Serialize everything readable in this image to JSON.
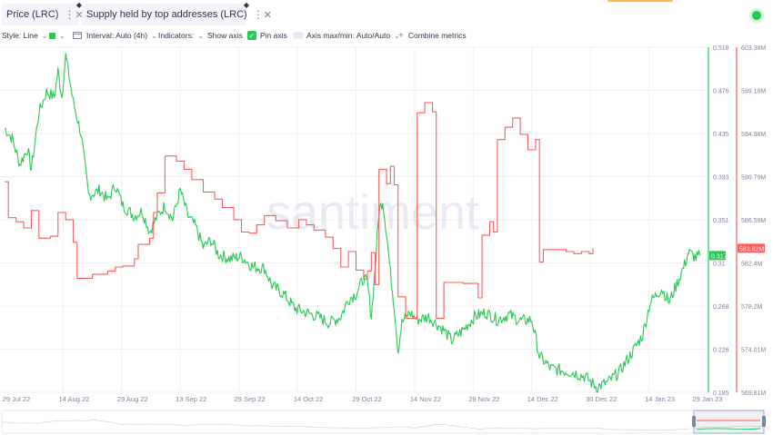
{
  "tabs": [
    {
      "label": "Price (LRC)",
      "color": "#26c953"
    },
    {
      "label": "Supply held by top addresses (LRC)",
      "color": "#ff5b5b"
    }
  ],
  "toolbar": {
    "style_label": "Style: Line",
    "interval_label": "Interval: Auto (4h)",
    "indicators_label": "Indicators:",
    "show_axis_label": "Show axis",
    "pin_axis_label": "Pin axis",
    "axis_maxmin_label": "Axis max/min: Auto/Auto",
    "combine_label": "Combine metrics"
  },
  "watermark": "santiment",
  "icons": [
    "kebab-menu-icon",
    "close-icon",
    "pin-icon",
    "chevron-down-icon",
    "calendar-icon",
    "checkmark-icon",
    "plus-icon",
    "live-indicator-icon"
  ],
  "chart_data": {
    "type": "line",
    "x_range": [
      "2022-07-29",
      "2023-01-29"
    ],
    "x_tick_labels": [
      "29 Jul 22",
      "14 Aug 22",
      "29 Aug 22",
      "13 Sep 22",
      "29 Sep 22",
      "14 Oct 22",
      "29 Oct 22",
      "14 Nov 22",
      "29 Nov 22",
      "14 Dec 22",
      "30 Dec 22",
      "14 Jan 23",
      "29 Jan 23"
    ],
    "y_axes": [
      {
        "series": "Price (LRC)",
        "color": "#26c953",
        "ylim": [
          0.185,
          0.518
        ],
        "tick_labels": [
          "0.518",
          "0.476",
          "0.435",
          "0.393",
          "0.351",
          "0.31",
          "0.268",
          "0.226",
          "0.185"
        ],
        "current_value_label": "0.317"
      },
      {
        "series": "Supply held by top addresses (LRC)",
        "color": "#ff5b5b",
        "ylim": [
          569.81,
          603.38
        ],
        "tick_labels": [
          "603.38M",
          "599.18M",
          "594.98M",
          "590.79M",
          "586.59M",
          "582.4M",
          "578.2M",
          "574.01M",
          "569.81M"
        ],
        "current_value_label": "583.82M"
      }
    ],
    "series": [
      {
        "name": "Price (LRC)",
        "points": [
          [
            "2022-07-29",
            0.44
          ],
          [
            "2022-07-31",
            0.43
          ],
          [
            "2022-08-02",
            0.405
          ],
          [
            "2022-08-04",
            0.42
          ],
          [
            "2022-08-05",
            0.4
          ],
          [
            "2022-08-07",
            0.455
          ],
          [
            "2022-08-09",
            0.475
          ],
          [
            "2022-08-11",
            0.47
          ],
          [
            "2022-08-12",
            0.495
          ],
          [
            "2022-08-13",
            0.47
          ],
          [
            "2022-08-14",
            0.51
          ],
          [
            "2022-08-16",
            0.465
          ],
          [
            "2022-08-18",
            0.435
          ],
          [
            "2022-08-20",
            0.375
          ],
          [
            "2022-08-23",
            0.38
          ],
          [
            "2022-08-25",
            0.37
          ],
          [
            "2022-08-27",
            0.385
          ],
          [
            "2022-08-29",
            0.365
          ],
          [
            "2022-09-01",
            0.355
          ],
          [
            "2022-09-03",
            0.36
          ],
          [
            "2022-09-05",
            0.34
          ],
          [
            "2022-09-07",
            0.355
          ],
          [
            "2022-09-09",
            0.365
          ],
          [
            "2022-09-11",
            0.352
          ],
          [
            "2022-09-13",
            0.38
          ],
          [
            "2022-09-15",
            0.355
          ],
          [
            "2022-09-17",
            0.345
          ],
          [
            "2022-09-19",
            0.325
          ],
          [
            "2022-09-21",
            0.332
          ],
          [
            "2022-09-23",
            0.318
          ],
          [
            "2022-09-26",
            0.314
          ],
          [
            "2022-09-29",
            0.316
          ],
          [
            "2022-10-02",
            0.306
          ],
          [
            "2022-10-05",
            0.305
          ],
          [
            "2022-10-07",
            0.288
          ],
          [
            "2022-10-10",
            0.28
          ],
          [
            "2022-10-13",
            0.266
          ],
          [
            "2022-10-16",
            0.262
          ],
          [
            "2022-10-19",
            0.258
          ],
          [
            "2022-10-22",
            0.252
          ],
          [
            "2022-10-25",
            0.258
          ],
          [
            "2022-10-27",
            0.275
          ],
          [
            "2022-10-29",
            0.28
          ],
          [
            "2022-10-31",
            0.295
          ],
          [
            "2022-11-01",
            0.29
          ],
          [
            "2022-11-02",
            0.258
          ],
          [
            "2022-11-03",
            0.305
          ],
          [
            "2022-11-04",
            0.36
          ],
          [
            "2022-11-05",
            0.37
          ],
          [
            "2022-11-06",
            0.338
          ],
          [
            "2022-11-07",
            0.3
          ],
          [
            "2022-11-08",
            0.268
          ],
          [
            "2022-11-09",
            0.225
          ],
          [
            "2022-11-10",
            0.252
          ],
          [
            "2022-11-12",
            0.262
          ],
          [
            "2022-11-14",
            0.255
          ],
          [
            "2022-11-17",
            0.258
          ],
          [
            "2022-11-21",
            0.245
          ],
          [
            "2022-11-23",
            0.235
          ],
          [
            "2022-11-26",
            0.245
          ],
          [
            "2022-11-29",
            0.258
          ],
          [
            "2022-12-02",
            0.262
          ],
          [
            "2022-12-05",
            0.255
          ],
          [
            "2022-12-08",
            0.26
          ],
          [
            "2022-12-11",
            0.254
          ],
          [
            "2022-12-14",
            0.255
          ],
          [
            "2022-12-16",
            0.22
          ],
          [
            "2022-12-19",
            0.208
          ],
          [
            "2022-12-22",
            0.206
          ],
          [
            "2022-12-25",
            0.204
          ],
          [
            "2022-12-28",
            0.2
          ],
          [
            "2022-12-31",
            0.19
          ],
          [
            "2023-01-03",
            0.195
          ],
          [
            "2023-01-06",
            0.205
          ],
          [
            "2023-01-09",
            0.222
          ],
          [
            "2023-01-12",
            0.24
          ],
          [
            "2023-01-14",
            0.272
          ],
          [
            "2023-01-17",
            0.285
          ],
          [
            "2023-01-19",
            0.272
          ],
          [
            "2023-01-21",
            0.29
          ],
          [
            "2023-01-23",
            0.308
          ],
          [
            "2023-01-24",
            0.32
          ],
          [
            "2023-01-26",
            0.315
          ],
          [
            "2023-01-27",
            0.317
          ]
        ]
      },
      {
        "name": "Supply held by top addresses (LRC)",
        "points": [
          [
            "2022-07-29",
            590.3
          ],
          [
            "2022-07-30",
            586.8
          ],
          [
            "2022-08-01",
            586.4
          ],
          [
            "2022-08-03",
            585.8
          ],
          [
            "2022-08-05",
            587.5
          ],
          [
            "2022-08-07",
            584.8
          ],
          [
            "2022-08-10",
            585.0
          ],
          [
            "2022-08-12",
            587.3
          ],
          [
            "2022-08-14",
            586.6
          ],
          [
            "2022-08-16",
            584.4
          ],
          [
            "2022-08-17",
            580.9
          ],
          [
            "2022-08-21",
            581.3
          ],
          [
            "2022-08-25",
            581.6
          ],
          [
            "2022-08-27",
            582.0
          ],
          [
            "2022-08-29",
            582.1
          ],
          [
            "2022-09-01",
            582.8
          ],
          [
            "2022-09-02",
            584.2
          ],
          [
            "2022-09-05",
            584.8
          ],
          [
            "2022-09-06",
            587.3
          ],
          [
            "2022-09-07",
            589.2
          ],
          [
            "2022-09-09",
            592.8
          ],
          [
            "2022-09-12",
            592.3
          ],
          [
            "2022-09-14",
            591.5
          ],
          [
            "2022-09-16",
            590.5
          ],
          [
            "2022-09-19",
            589.3
          ],
          [
            "2022-09-22",
            588.6
          ],
          [
            "2022-09-24",
            587.8
          ],
          [
            "2022-09-27",
            586.6
          ],
          [
            "2022-09-29",
            585.4
          ],
          [
            "2022-10-01",
            585.3
          ],
          [
            "2022-10-03",
            586.1
          ],
          [
            "2022-10-05",
            587.0
          ],
          [
            "2022-10-08",
            586.5
          ],
          [
            "2022-10-11",
            585.8
          ],
          [
            "2022-10-14",
            586.6
          ],
          [
            "2022-10-16",
            586.1
          ],
          [
            "2022-10-18",
            585.6
          ],
          [
            "2022-10-21",
            584.9
          ],
          [
            "2022-10-23",
            583.8
          ],
          [
            "2022-10-25",
            582.0
          ],
          [
            "2022-10-27",
            583.5
          ],
          [
            "2022-10-29",
            581.7
          ],
          [
            "2022-10-31",
            580.8
          ],
          [
            "2022-11-01",
            581.6
          ],
          [
            "2022-11-02",
            583.4
          ],
          [
            "2022-11-03",
            580.3
          ],
          [
            "2022-11-04",
            591.5
          ],
          [
            "2022-11-06",
            590.1
          ],
          [
            "2022-11-07",
            591.8
          ],
          [
            "2022-11-08",
            590.0
          ],
          [
            "2022-11-09",
            579.1
          ],
          [
            "2022-11-11",
            577.0
          ],
          [
            "2022-11-13",
            577.0
          ],
          [
            "2022-11-14",
            597.0
          ],
          [
            "2022-11-16",
            598.0
          ],
          [
            "2022-11-18",
            597.1
          ],
          [
            "2022-11-19",
            577.0
          ],
          [
            "2022-11-21",
            580.5
          ],
          [
            "2022-11-26",
            580.4
          ],
          [
            "2022-11-29",
            580.4
          ],
          [
            "2022-11-30",
            579.0
          ],
          [
            "2022-12-01",
            585.1
          ],
          [
            "2022-12-03",
            586.4
          ],
          [
            "2022-12-04",
            585.4
          ],
          [
            "2022-12-05",
            594.4
          ],
          [
            "2022-12-07",
            595.6
          ],
          [
            "2022-12-09",
            596.5
          ],
          [
            "2022-12-11",
            594.9
          ],
          [
            "2022-12-13",
            593.4
          ],
          [
            "2022-12-15",
            594.4
          ],
          [
            "2022-12-16",
            582.5
          ],
          [
            "2022-12-17",
            583.7
          ],
          [
            "2022-12-20",
            583.7
          ],
          [
            "2022-12-23",
            583.5
          ],
          [
            "2022-12-25",
            583.3
          ],
          [
            "2022-12-27",
            583.5
          ],
          [
            "2022-12-29",
            583.3
          ],
          [
            "2022-12-30",
            583.82
          ]
        ]
      }
    ],
    "grid": true,
    "legend": "top-left tabs"
  }
}
